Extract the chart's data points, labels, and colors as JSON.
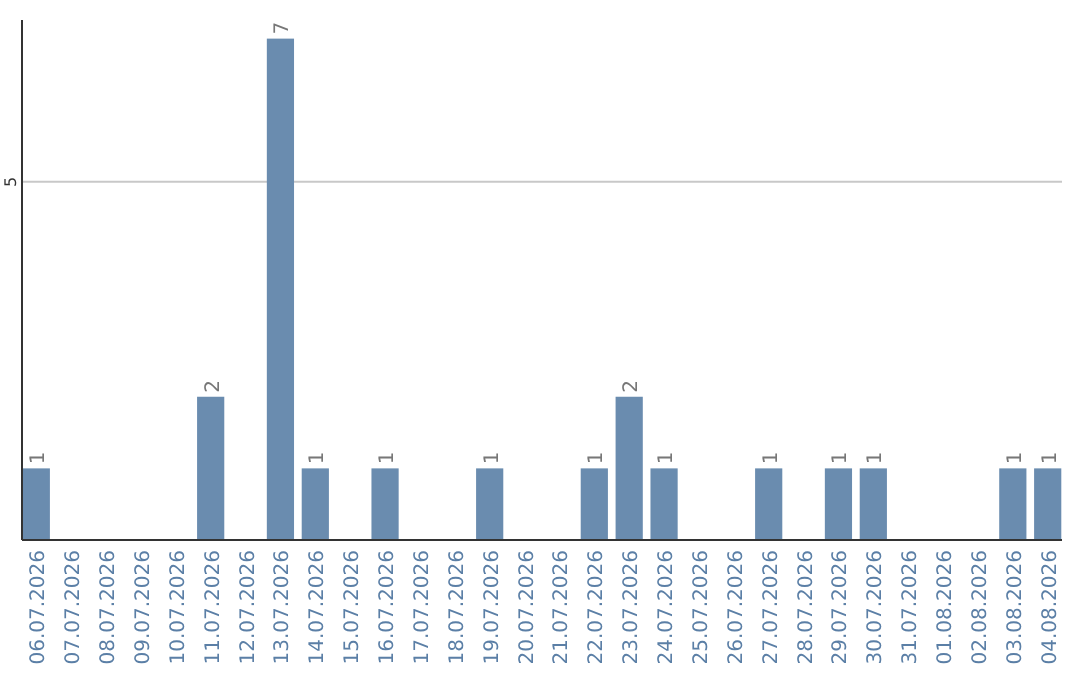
{
  "chart_data": {
    "type": "bar",
    "categories": [
      "06.07.2026",
      "07.07.2026",
      "08.07.2026",
      "09.07.2026",
      "10.07.2026",
      "11.07.2026",
      "12.07.2026",
      "13.07.2026",
      "14.07.2026",
      "15.07.2026",
      "16.07.2026",
      "17.07.2026",
      "18.07.2026",
      "19.07.2026",
      "20.07.2026",
      "21.07.2026",
      "22.07.2026",
      "23.07.2026",
      "24.07.2026",
      "25.07.2026",
      "26.07.2026",
      "27.07.2026",
      "28.07.2026",
      "29.07.2026",
      "30.07.2026",
      "31.07.2026",
      "01.08.2026",
      "02.08.2026",
      "03.08.2026",
      "04.08.2026"
    ],
    "values": [
      1,
      0,
      0,
      0,
      0,
      2,
      0,
      7,
      1,
      0,
      1,
      0,
      0,
      1,
      0,
      0,
      1,
      2,
      1,
      0,
      0,
      1,
      0,
      1,
      1,
      0,
      0,
      0,
      1,
      1
    ],
    "value_labels": [
      "1",
      null,
      null,
      null,
      null,
      "2",
      null,
      "7",
      "1",
      null,
      "1",
      null,
      null,
      "1",
      null,
      null,
      "1",
      "2",
      "1",
      null,
      null,
      "1",
      null,
      "1",
      "1",
      null,
      null,
      null,
      "1",
      "1"
    ],
    "color": "#6a8caf",
    "ylim": [
      0,
      7.26
    ],
    "yticks": [
      5
    ],
    "grid": "y"
  }
}
